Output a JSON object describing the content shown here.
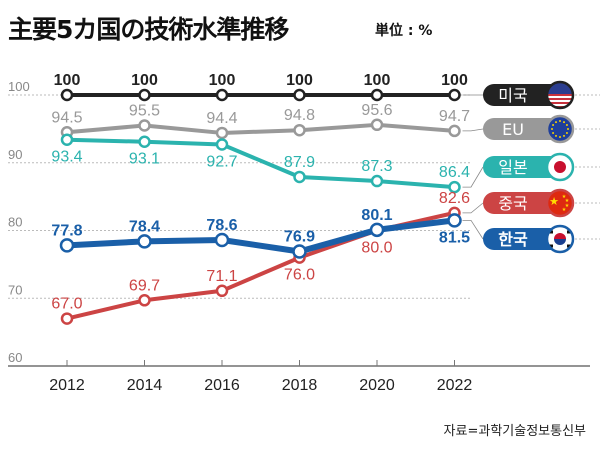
{
  "header": {
    "title": "主要5カ国の技術水準推移",
    "unit": "単位 : %"
  },
  "source": "자료=과학기술정보통신부",
  "chart_data": {
    "type": "line",
    "title": "主要5カ国の技術水準推移",
    "unit_label": "単位 : %",
    "xlabel": "",
    "ylabel": "",
    "x": [
      "2012",
      "2014",
      "2016",
      "2018",
      "2020",
      "2022"
    ],
    "y_ticks": [
      "60",
      "70",
      "80",
      "90",
      "100"
    ],
    "ylim": [
      60,
      100
    ],
    "grid": true,
    "legend_placement": "right",
    "series": [
      {
        "name": "미국",
        "key": "usa",
        "color": "#222222",
        "values": [
          100,
          100,
          100,
          100,
          100,
          100
        ],
        "labels": [
          "100",
          "100",
          "100",
          "100",
          "100",
          "100"
        ],
        "label_pos": [
          "above",
          "above",
          "above",
          "above",
          "above",
          "above"
        ],
        "flag": "usa-flag-icon"
      },
      {
        "name": "EU",
        "key": "eu",
        "color": "#999999",
        "values": [
          94.5,
          95.5,
          94.4,
          94.8,
          95.6,
          94.7
        ],
        "labels": [
          "94.5",
          "95.5",
          "94.4",
          "94.8",
          "95.6",
          "94.7"
        ],
        "label_pos": [
          "above",
          "above",
          "above",
          "above",
          "above",
          "above"
        ],
        "flag": "eu-flag-icon"
      },
      {
        "name": "일본",
        "key": "japan",
        "color": "#2bb3ae",
        "values": [
          93.4,
          93.1,
          92.7,
          87.9,
          87.3,
          86.4
        ],
        "labels": [
          "93.4",
          "93.1",
          "92.7",
          "87.9",
          "87.3",
          "86.4"
        ],
        "label_pos": [
          "below",
          "below",
          "below",
          "above",
          "above",
          "above"
        ],
        "flag": "japan-flag-icon"
      },
      {
        "name": "중국",
        "key": "china",
        "color": "#cc4444",
        "values": [
          67.0,
          69.7,
          71.1,
          76.0,
          80.0,
          82.6
        ],
        "labels": [
          "67.0",
          "69.7",
          "71.1",
          "76.0",
          "80.0",
          "82.6"
        ],
        "label_pos": [
          "above",
          "above",
          "above",
          "below",
          "below",
          "above"
        ],
        "flag": "china-flag-icon"
      },
      {
        "name": "한국",
        "key": "korea",
        "color": "#1a5fa8",
        "values": [
          77.8,
          78.4,
          78.6,
          76.9,
          80.1,
          81.5
        ],
        "labels": [
          "77.8",
          "78.4",
          "78.6",
          "76.9",
          "80.1",
          "81.5"
        ],
        "label_pos": [
          "above",
          "above",
          "above",
          "above",
          "above",
          "below"
        ],
        "flag": "korea-flag-icon",
        "bold": true
      }
    ]
  }
}
